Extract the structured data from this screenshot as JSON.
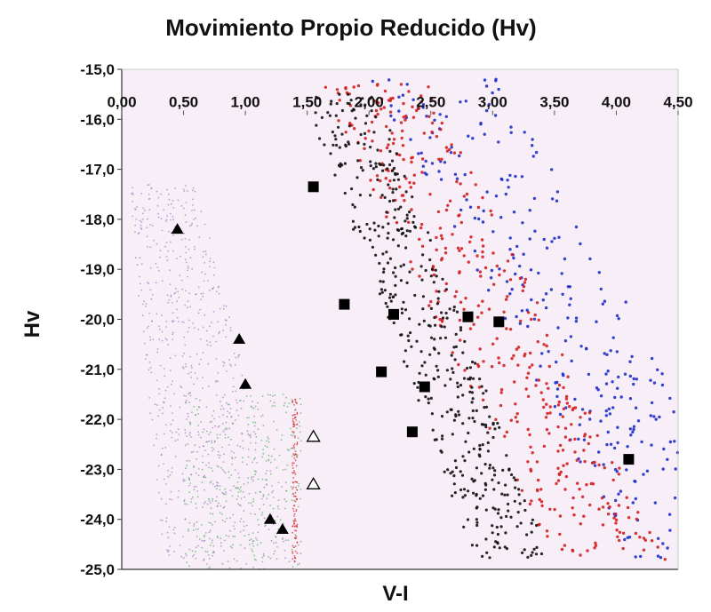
{
  "chart_data": {
    "type": "scatter",
    "title": "Movimiento Propio Reducido (Hv)",
    "xlabel": "V-I",
    "ylabel": "Hv",
    "xlim": [
      0,
      4.5
    ],
    "ylim": [
      -15.0,
      -25.0
    ],
    "x_axis_position": "top",
    "y_axis_inverted": true,
    "x_ticks": [
      "0,00",
      "0,50",
      "1,00",
      "1,50",
      "2,00",
      "2,50",
      "3,00",
      "3,50",
      "4,00",
      "4,50"
    ],
    "y_ticks": [
      "-15,0",
      "-16,0",
      "-17,0",
      "-18,0",
      "-19,0",
      "-20,0",
      "-21,0",
      "-22,0",
      "-23,0",
      "-24,0",
      "-25,0"
    ],
    "plot_background": "#f7eef7",
    "series": [
      {
        "marker": "square-filled",
        "color": "#000000",
        "points": [
          [
            1.55,
            -17.35
          ],
          [
            1.8,
            -19.7
          ],
          [
            2.1,
            -21.05
          ],
          [
            2.2,
            -19.9
          ],
          [
            2.35,
            -22.25
          ],
          [
            2.45,
            -21.35
          ],
          [
            2.8,
            -19.95
          ],
          [
            3.05,
            -20.05
          ],
          [
            4.1,
            -22.8
          ]
        ]
      },
      {
        "marker": "triangle-filled",
        "color": "#000000",
        "points": [
          [
            0.45,
            -18.2
          ],
          [
            0.95,
            -20.4
          ],
          [
            1.0,
            -21.3
          ],
          [
            1.2,
            -24.0
          ],
          [
            1.3,
            -24.2
          ]
        ]
      },
      {
        "marker": "triangle-open",
        "color": "#000000",
        "points": [
          [
            1.55,
            -22.35
          ],
          [
            1.55,
            -23.3
          ]
        ]
      }
    ],
    "background_clouds": [
      {
        "color": "#1f2fc8",
        "description_points": "scattered small points"
      },
      {
        "color": "#d41f1f",
        "description_points": "scattered small points"
      },
      {
        "color": "#111111",
        "description_points": "scattered small points"
      },
      {
        "color": "#8a5cb0",
        "description_points": "faint small points"
      },
      {
        "color": "#2e9a3a",
        "description_points": "faint small points"
      }
    ]
  }
}
